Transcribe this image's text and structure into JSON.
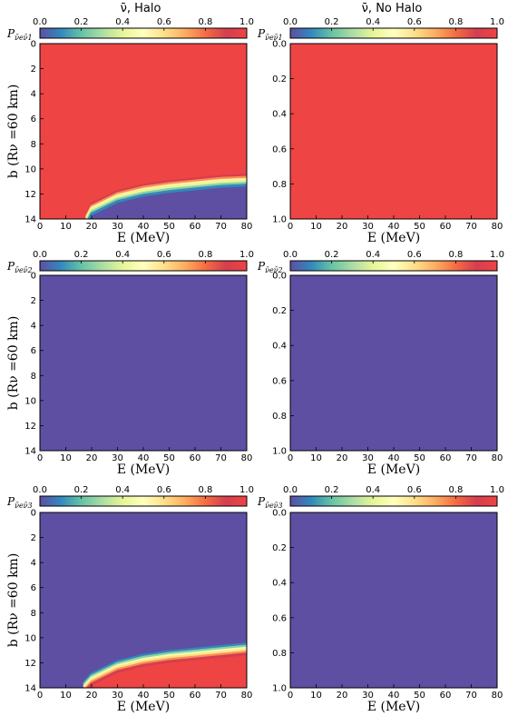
{
  "column_titles": [
    "ν̄, Halo",
    "ν̄, No Halo"
  ],
  "colormap": [
    "#5e4fa2",
    "#3288bd",
    "#66c2a5",
    "#abdda4",
    "#e6f598",
    "#ffffbf",
    "#fee08b",
    "#fdae61",
    "#f46d43",
    "#d53e4f",
    "#ee4444"
  ],
  "colors": {
    "purple": "#66338f",
    "red": "#ee4444"
  },
  "chart_data": [
    {
      "id": "p11-halo",
      "type": "heatmap",
      "row": 0,
      "col": 0,
      "colorbar_label": "P",
      "colorbar_sub": "ν̄eν̄1",
      "colorbar_ticks": [
        "0.0",
        "0.2",
        "0.4",
        "0.6",
        "0.8",
        "1.0"
      ],
      "clim": [
        0,
        1
      ],
      "xlim": [
        0,
        80
      ],
      "ylim": [
        0,
        14
      ],
      "x_ticks": [
        "0",
        "10",
        "20",
        "30",
        "40",
        "50",
        "60",
        "70",
        "80"
      ],
      "y_ticks": [
        "0",
        "2",
        "4",
        "6",
        "8",
        "10",
        "12",
        "14"
      ],
      "xlabel": "E (MeV)",
      "ylabel": "b (Rν =60 km)",
      "pattern": {
        "above": 1.0,
        "below": 0.0,
        "boundary_b": [
          [
            18,
            14
          ],
          [
            20,
            13.2
          ],
          [
            30,
            12.2
          ],
          [
            40,
            11.7
          ],
          [
            50,
            11.4
          ],
          [
            60,
            11.2
          ],
          [
            70,
            11.0
          ],
          [
            80,
            10.9
          ]
        ]
      }
    },
    {
      "id": "p11-nohalo",
      "type": "heatmap",
      "row": 0,
      "col": 1,
      "colorbar_label": "P",
      "colorbar_sub": "ν̄eν̄1",
      "colorbar_ticks": [
        "0.0",
        "0.2",
        "0.4",
        "0.6",
        "0.8",
        "1.0"
      ],
      "clim": [
        0,
        1
      ],
      "xlim": [
        0,
        80
      ],
      "ylim": [
        0,
        1
      ],
      "x_ticks": [
        "0",
        "10",
        "20",
        "30",
        "40",
        "50",
        "60",
        "70",
        "80"
      ],
      "y_ticks": [
        "0.0",
        "0.2",
        "0.4",
        "0.6",
        "0.8",
        "1.0"
      ],
      "xlabel": "E (MeV)",
      "ylabel": "",
      "pattern": {
        "uniform": 1.0
      }
    },
    {
      "id": "p12-halo",
      "type": "heatmap",
      "row": 1,
      "col": 0,
      "colorbar_label": "P",
      "colorbar_sub": "ν̄eν̄2",
      "colorbar_ticks": [
        "0.0",
        "0.2",
        "0.4",
        "0.6",
        "0.8",
        "1.0"
      ],
      "clim": [
        0,
        1
      ],
      "xlim": [
        0,
        80
      ],
      "ylim": [
        0,
        14
      ],
      "x_ticks": [
        "0",
        "10",
        "20",
        "30",
        "40",
        "50",
        "60",
        "70",
        "80"
      ],
      "y_ticks": [
        "0",
        "2",
        "4",
        "6",
        "8",
        "10",
        "12",
        "14"
      ],
      "xlabel": "E (MeV)",
      "ylabel": "b (Rν =60 km)",
      "pattern": {
        "uniform": 0.0
      }
    },
    {
      "id": "p12-nohalo",
      "type": "heatmap",
      "row": 1,
      "col": 1,
      "colorbar_label": "P",
      "colorbar_sub": "ν̄eν̄2",
      "colorbar_ticks": [
        "0.0",
        "0.2",
        "0.4",
        "0.6",
        "0.8",
        "1.0"
      ],
      "clim": [
        0,
        1
      ],
      "xlim": [
        0,
        80
      ],
      "ylim": [
        0,
        1
      ],
      "x_ticks": [
        "0",
        "10",
        "20",
        "30",
        "40",
        "50",
        "60",
        "70",
        "80"
      ],
      "y_ticks": [
        "0.0",
        "0.2",
        "0.4",
        "0.6",
        "0.8",
        "1.0"
      ],
      "xlabel": "E (MeV)",
      "ylabel": "",
      "pattern": {
        "uniform": 0.0
      }
    },
    {
      "id": "p13-halo",
      "type": "heatmap",
      "row": 2,
      "col": 0,
      "colorbar_label": "P",
      "colorbar_sub": "ν̄eν̄3",
      "colorbar_ticks": [
        "0.0",
        "0.2",
        "0.4",
        "0.6",
        "0.8",
        "1.0"
      ],
      "clim": [
        0,
        1
      ],
      "xlim": [
        0,
        80
      ],
      "ylim": [
        0,
        14
      ],
      "x_ticks": [
        "0",
        "10",
        "20",
        "30",
        "40",
        "50",
        "60",
        "70",
        "80"
      ],
      "y_ticks": [
        "0",
        "2",
        "4",
        "6",
        "8",
        "10",
        "12",
        "14"
      ],
      "xlabel": "E (MeV)",
      "ylabel": "b (Rν =60 km)",
      "pattern": {
        "above": 0.0,
        "below": 1.0,
        "boundary_b": [
          [
            17,
            14
          ],
          [
            20,
            13.3
          ],
          [
            30,
            12.3
          ],
          [
            40,
            11.8
          ],
          [
            50,
            11.5
          ],
          [
            60,
            11.3
          ],
          [
            70,
            11.1
          ],
          [
            80,
            10.9
          ]
        ]
      }
    },
    {
      "id": "p13-nohalo",
      "type": "heatmap",
      "row": 2,
      "col": 1,
      "colorbar_label": "P",
      "colorbar_sub": "ν̄eν̄3",
      "colorbar_ticks": [
        "0.0",
        "0.2",
        "0.4",
        "0.6",
        "0.8",
        "1.0"
      ],
      "clim": [
        0,
        1
      ],
      "xlim": [
        0,
        80
      ],
      "ylim": [
        0,
        1
      ],
      "x_ticks": [
        "0",
        "10",
        "20",
        "30",
        "40",
        "50",
        "60",
        "70",
        "80"
      ],
      "y_ticks": [
        "0.0",
        "0.2",
        "0.4",
        "0.6",
        "0.8",
        "1.0"
      ],
      "xlabel": "E (MeV)",
      "ylabel": "",
      "pattern": {
        "uniform": 0.0
      }
    }
  ]
}
